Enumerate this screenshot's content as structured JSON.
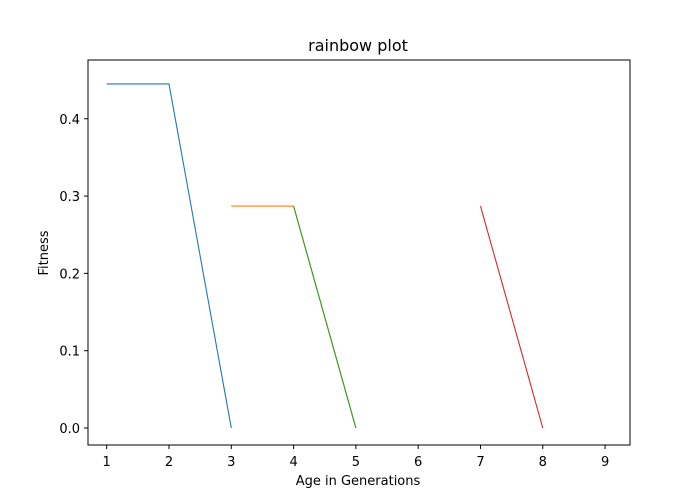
{
  "chart_data": {
    "type": "line",
    "title": "rainbow plot",
    "xlabel": "Age in Generations",
    "ylabel": "Fitness",
    "xlim": [
      0.7,
      9.4
    ],
    "ylim": [
      -0.022,
      0.476
    ],
    "xticks": [
      1,
      2,
      3,
      4,
      5,
      6,
      7,
      8,
      9
    ],
    "yticks": [
      0.0,
      0.1,
      0.2,
      0.3,
      0.4
    ],
    "ytick_labels": [
      "0.0",
      "0.1",
      "0.2",
      "0.3",
      "0.4"
    ],
    "grid": false,
    "series": [
      {
        "color": "#1f77b4",
        "x": [
          1,
          2,
          3
        ],
        "y": [
          0.445,
          0.445,
          0.0
        ]
      },
      {
        "color": "#ff7f0e",
        "x": [
          3,
          4,
          5
        ],
        "y": [
          0.287,
          0.287,
          0.0
        ]
      },
      {
        "color": "#2ca02c",
        "x": [
          4,
          5
        ],
        "y": [
          0.287,
          0.0
        ]
      },
      {
        "color": "#d62728",
        "x": [
          7,
          8
        ],
        "y": [
          0.287,
          0.0
        ]
      }
    ]
  }
}
